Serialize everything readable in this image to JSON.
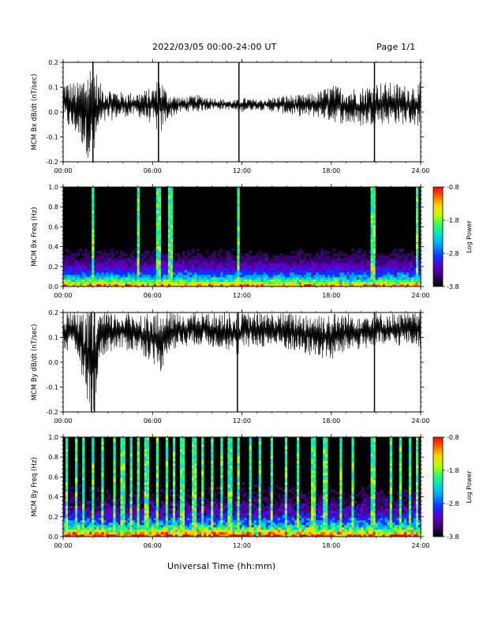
{
  "header": {
    "title": "2022/03/05  00:00-24:00 UT",
    "page": "Page 1/1"
  },
  "footer": {
    "xlabel": "Universal Time (hh:mm)"
  },
  "colors": {
    "trace": "#000000",
    "spectrogram_background": "#000000",
    "colormap": [
      "#000000",
      "#3a0070",
      "#5a00c8",
      "#1030ff",
      "#00a0ff",
      "#00e0d0",
      "#30ff60",
      "#c0ff00",
      "#ffd000",
      "#ff6000",
      "#ff0000"
    ]
  },
  "chart_data": [
    {
      "type": "line",
      "name": "bx-timeseries",
      "ylabel": "MCM Bx dB/dt (nT/sec)",
      "xlim": [
        0,
        24
      ],
      "ylim": [
        -0.2,
        0.2
      ],
      "x_ticks": [
        "00:00",
        "06:00",
        "12:00",
        "18:00",
        "24:00"
      ],
      "y_ticks": [
        "-0.2",
        "-0.1",
        "0.0",
        "0.1",
        "0.2"
      ],
      "envelope": {
        "x_hours": [
          0,
          1,
          1.8,
          2.1,
          2.4,
          3,
          4,
          5,
          6,
          6.5,
          7,
          8,
          9,
          10,
          11,
          11.7,
          12,
          13,
          14,
          15,
          16,
          17,
          18,
          19,
          20,
          21,
          22,
          23,
          24
        ],
        "upper": [
          0.13,
          0.12,
          0.2,
          0.2,
          0.12,
          0.1,
          0.08,
          0.08,
          0.1,
          0.15,
          0.08,
          0.06,
          0.07,
          0.06,
          0.05,
          0.05,
          0.06,
          0.05,
          0.06,
          0.07,
          0.07,
          0.08,
          0.11,
          0.1,
          0.1,
          0.12,
          0.12,
          0.11,
          0.12
        ],
        "lower": [
          -0.05,
          -0.1,
          -0.2,
          -0.2,
          -0.08,
          -0.04,
          -0.02,
          -0.02,
          -0.05,
          -0.1,
          -0.03,
          0.0,
          0.0,
          0.01,
          0.01,
          0.0,
          0.0,
          0.01,
          0.0,
          -0.01,
          -0.02,
          -0.02,
          -0.04,
          -0.05,
          -0.06,
          -0.05,
          -0.05,
          -0.05,
          -0.06
        ]
      },
      "spikes_hours": [
        2.0,
        6.4,
        11.8,
        20.9
      ]
    },
    {
      "type": "heatmap",
      "name": "bx-spectrogram",
      "ylabel": "MCM Bx Freq (Hz)",
      "xlim": [
        0,
        24
      ],
      "ylim": [
        0,
        1
      ],
      "x_ticks": [
        "00:00",
        "06:00",
        "12:00",
        "18:00",
        "24:00"
      ],
      "y_ticks": [
        "0.0",
        "0.2",
        "0.4",
        "0.6",
        "0.8",
        "1.0"
      ],
      "colorbar_label": "Log Power",
      "colorbar_ticks": [
        "-0.8",
        "-1.8",
        "-2.8",
        "-3.8"
      ],
      "colorbar_range": [
        -3.8,
        -0.8
      ],
      "bright_lines_hours": [
        2.0,
        5.0,
        6.4,
        7.2,
        11.8,
        20.8,
        23.7
      ],
      "activity_level": 0.25
    },
    {
      "type": "line",
      "name": "by-timeseries",
      "ylabel": "MCM By dB/dt (nT/sec)",
      "xlim": [
        0,
        24
      ],
      "ylim": [
        -0.2,
        0.2
      ],
      "x_ticks": [
        "00:00",
        "06:00",
        "12:00",
        "18:00",
        "24:00"
      ],
      "y_ticks": [
        "-0.2",
        "-0.1",
        "0.0",
        "0.1",
        "0.2"
      ],
      "envelope": {
        "x_hours": [
          0,
          1,
          1.8,
          2.1,
          2.4,
          3,
          4,
          5,
          6,
          6.5,
          7,
          8,
          9,
          10,
          11,
          11.7,
          12,
          13,
          14,
          15,
          16,
          17,
          18,
          19,
          20,
          21,
          22,
          23,
          24
        ],
        "upper": [
          0.2,
          0.2,
          0.2,
          0.2,
          0.2,
          0.2,
          0.2,
          0.2,
          0.2,
          0.2,
          0.2,
          0.2,
          0.2,
          0.2,
          0.2,
          0.2,
          0.2,
          0.2,
          0.2,
          0.2,
          0.2,
          0.2,
          0.2,
          0.2,
          0.2,
          0.2,
          0.2,
          0.2,
          0.2
        ],
        "lower": [
          0.05,
          0.02,
          -0.2,
          -0.2,
          0.0,
          0.04,
          0.05,
          0.04,
          0.0,
          -0.05,
          0.04,
          0.06,
          0.07,
          0.06,
          0.05,
          0.02,
          0.05,
          0.06,
          0.06,
          0.05,
          0.03,
          0.02,
          0.0,
          0.04,
          0.05,
          0.06,
          0.06,
          0.07,
          0.06
        ]
      },
      "spikes_hours": [
        1.9,
        2.1,
        11.7,
        20.9
      ]
    },
    {
      "type": "heatmap",
      "name": "by-spectrogram",
      "ylabel": "MCM By Freq (Hz)",
      "xlim": [
        0,
        24
      ],
      "ylim": [
        0,
        1
      ],
      "x_ticks": [
        "00:00",
        "06:00",
        "12:00",
        "18:00",
        "24:00"
      ],
      "y_ticks": [
        "0.0",
        "0.2",
        "0.4",
        "0.6",
        "0.8",
        "1.0"
      ],
      "colorbar_label": "Log Power",
      "colorbar_ticks": [
        "-0.8",
        "-1.8",
        "-2.8",
        "-3.8"
      ],
      "colorbar_range": [
        -3.8,
        -0.8
      ],
      "bright_lines_hours": [
        0.3,
        0.9,
        1.4,
        2.0,
        2.7,
        3.5,
        4.0,
        4.6,
        5.1,
        5.6,
        6.3,
        6.9,
        7.5,
        8.0,
        8.8,
        9.4,
        10.0,
        10.6,
        11.2,
        11.8,
        12.5,
        13.2,
        14.0,
        14.9,
        15.8,
        16.8,
        17.6,
        18.6,
        19.5,
        20.8,
        22.0,
        22.6,
        23.3,
        23.7
      ],
      "activity_level": 0.55
    }
  ]
}
